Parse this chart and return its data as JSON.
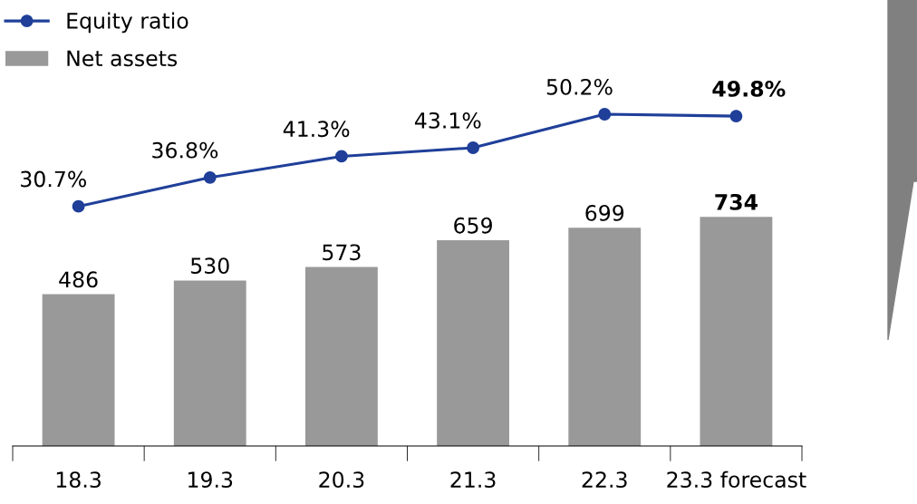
{
  "chart_data": [
    {
      "type": "bar",
      "categories": [
        "18.3",
        "19.3",
        "20.3",
        "21.3",
        "22.3",
        "23.3 forecast"
      ],
      "series": [
        {
          "name": "Net assets",
          "color": "#999999",
          "values": [
            486,
            530,
            573,
            659,
            699,
            734
          ]
        }
      ],
      "tick_labels": "x",
      "data_labels": true,
      "legend": "top left",
      "grid": false
    },
    {
      "type": "line",
      "categories": [
        null,
        null,
        null,
        null,
        null,
        null
      ],
      "series": [
        {
          "name": "Equity ratio",
          "color": "#1f3f99",
          "values": [
            30.7,
            36.8,
            41.3,
            43.1,
            50.2,
            49.8
          ],
          "value_labels": [
            "30.7%",
            "36.8%",
            "41.3%",
            "43.1%",
            "50.2%",
            "49.8%"
          ]
        }
      ],
      "tick_labels": false,
      "data_labels": true,
      "legend": "top left",
      "marker": "circle",
      "line_style": "solid",
      "grid": false
    }
  ]
}
